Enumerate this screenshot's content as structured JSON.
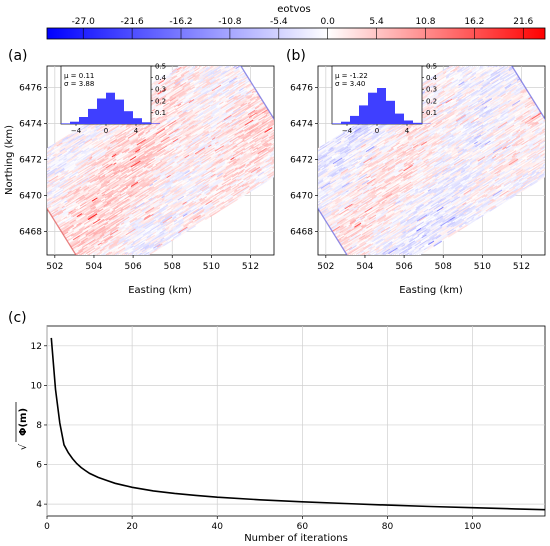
{
  "colorbar": {
    "label": "eotvos",
    "min": -31,
    "max": 24,
    "ticks": [
      "-27.0",
      "-21.6",
      "-16.2",
      "-10.8",
      "-5.4",
      "0.0",
      "5.4",
      "10.8",
      "16.2",
      "21.6"
    ],
    "tick_values": [
      -27.0,
      -21.6,
      -16.2,
      -10.8,
      -5.4,
      0.0,
      5.4,
      10.8,
      16.2,
      21.6
    ],
    "color_low": "#0000ff",
    "color_mid": "#ffffff",
    "color_high": "#ff0000"
  },
  "maps": [
    {
      "panel": "(a)",
      "xlabel": "Easting (km)",
      "ylabel": "Northing (km)",
      "xlim": [
        501.6,
        513.2
      ],
      "ylim": [
        6466.7,
        6477.2
      ],
      "xticks": [
        "502",
        "504",
        "506",
        "508",
        "510",
        "512"
      ],
      "yticks": [
        "6468",
        "6470",
        "6472",
        "6474",
        "6476"
      ],
      "residual_bias": "positive",
      "inset": {
        "mu": "μ = 0.11",
        "sigma": "σ = 3.88",
        "xticks": [
          "−4",
          "0",
          "4"
        ],
        "yticks": [
          "0.1",
          "0.2",
          "0.3",
          "0.4",
          "0.5"
        ],
        "bins": [
          -6.0,
          -4.8,
          -3.6,
          -2.4,
          -1.2,
          0.0,
          1.2,
          2.4,
          3.6,
          4.8,
          6.0
        ],
        "density": [
          0.005,
          0.02,
          0.06,
          0.13,
          0.22,
          0.27,
          0.21,
          0.11,
          0.05,
          0.015,
          0.005
        ],
        "bar_color": "#3f3fff"
      }
    },
    {
      "panel": "(b)",
      "xlabel": "Easting (km)",
      "ylabel": "",
      "xlim": [
        501.6,
        513.2
      ],
      "ylim": [
        6466.7,
        6477.2
      ],
      "xticks": [
        "502",
        "504",
        "506",
        "508",
        "510",
        "512"
      ],
      "yticks": [
        "6468",
        "6470",
        "6472",
        "6474",
        "6476"
      ],
      "residual_bias": "neutral",
      "inset": {
        "mu": "μ = -1.22",
        "sigma": "σ = 3.40",
        "xticks": [
          "−4",
          "0",
          "4"
        ],
        "yticks": [
          "0.1",
          "0.2",
          "0.3",
          "0.4",
          "0.5"
        ],
        "bins": [
          -6.0,
          -4.8,
          -3.6,
          -2.4,
          -1.2,
          0.0,
          1.2,
          2.4,
          3.6,
          4.8,
          6.0
        ],
        "density": [
          0.005,
          0.02,
          0.07,
          0.16,
          0.27,
          0.31,
          0.2,
          0.09,
          0.03,
          0.01,
          0.003
        ],
        "bar_color": "#3f3fff"
      }
    }
  ],
  "convergence": {
    "panel": "(c)",
    "xlabel": "Number of iterations",
    "ylabel_root": "√",
    "ylabel": "Φ(m)",
    "xlim": [
      0,
      117
    ],
    "ylim": [
      3.4,
      13.0
    ],
    "xticks": [
      0,
      20,
      40,
      60,
      80,
      100
    ],
    "yticks": [
      4,
      6,
      8,
      10,
      12
    ],
    "line_color": "#000000"
  },
  "chart_data": [
    {
      "type": "heatmap",
      "title": "",
      "panel": "(a)",
      "xlabel": "Easting (km)",
      "ylabel": "Northing (km)",
      "colorbar_label": "eotvos",
      "color_range": [
        -31,
        24
      ],
      "inset_histogram": {
        "mean": 0.11,
        "std": 3.88,
        "xlim": [
          -6,
          6
        ],
        "ylim": [
          0,
          0.5
        ]
      }
    },
    {
      "type": "heatmap",
      "title": "",
      "panel": "(b)",
      "xlabel": "Easting (km)",
      "ylabel": "",
      "colorbar_label": "eotvos",
      "color_range": [
        -31,
        24
      ],
      "inset_histogram": {
        "mean": -1.22,
        "std": 3.4,
        "xlim": [
          -6,
          6
        ],
        "ylim": [
          0,
          0.5
        ]
      }
    },
    {
      "type": "line",
      "title": "",
      "panel": "(c)",
      "xlabel": "Number of iterations",
      "ylabel": "√Φ(m)",
      "xlim": [
        0,
        117
      ],
      "ylim": [
        3.4,
        13.0
      ],
      "grid": true,
      "series": [
        {
          "x": [
            1,
            2,
            3,
            4,
            5,
            6,
            7,
            8,
            9,
            10,
            12,
            14,
            16,
            18,
            20,
            25,
            30,
            35,
            40,
            50,
            60,
            70,
            80,
            90,
            100,
            110,
            117
          ],
          "y": [
            12.4,
            9.8,
            8.1,
            7.0,
            6.6,
            6.3,
            6.05,
            5.85,
            5.7,
            5.55,
            5.35,
            5.2,
            5.05,
            4.95,
            4.85,
            4.67,
            4.54,
            4.44,
            4.35,
            4.22,
            4.12,
            4.03,
            3.95,
            3.88,
            3.82,
            3.76,
            3.72
          ]
        }
      ]
    }
  ]
}
